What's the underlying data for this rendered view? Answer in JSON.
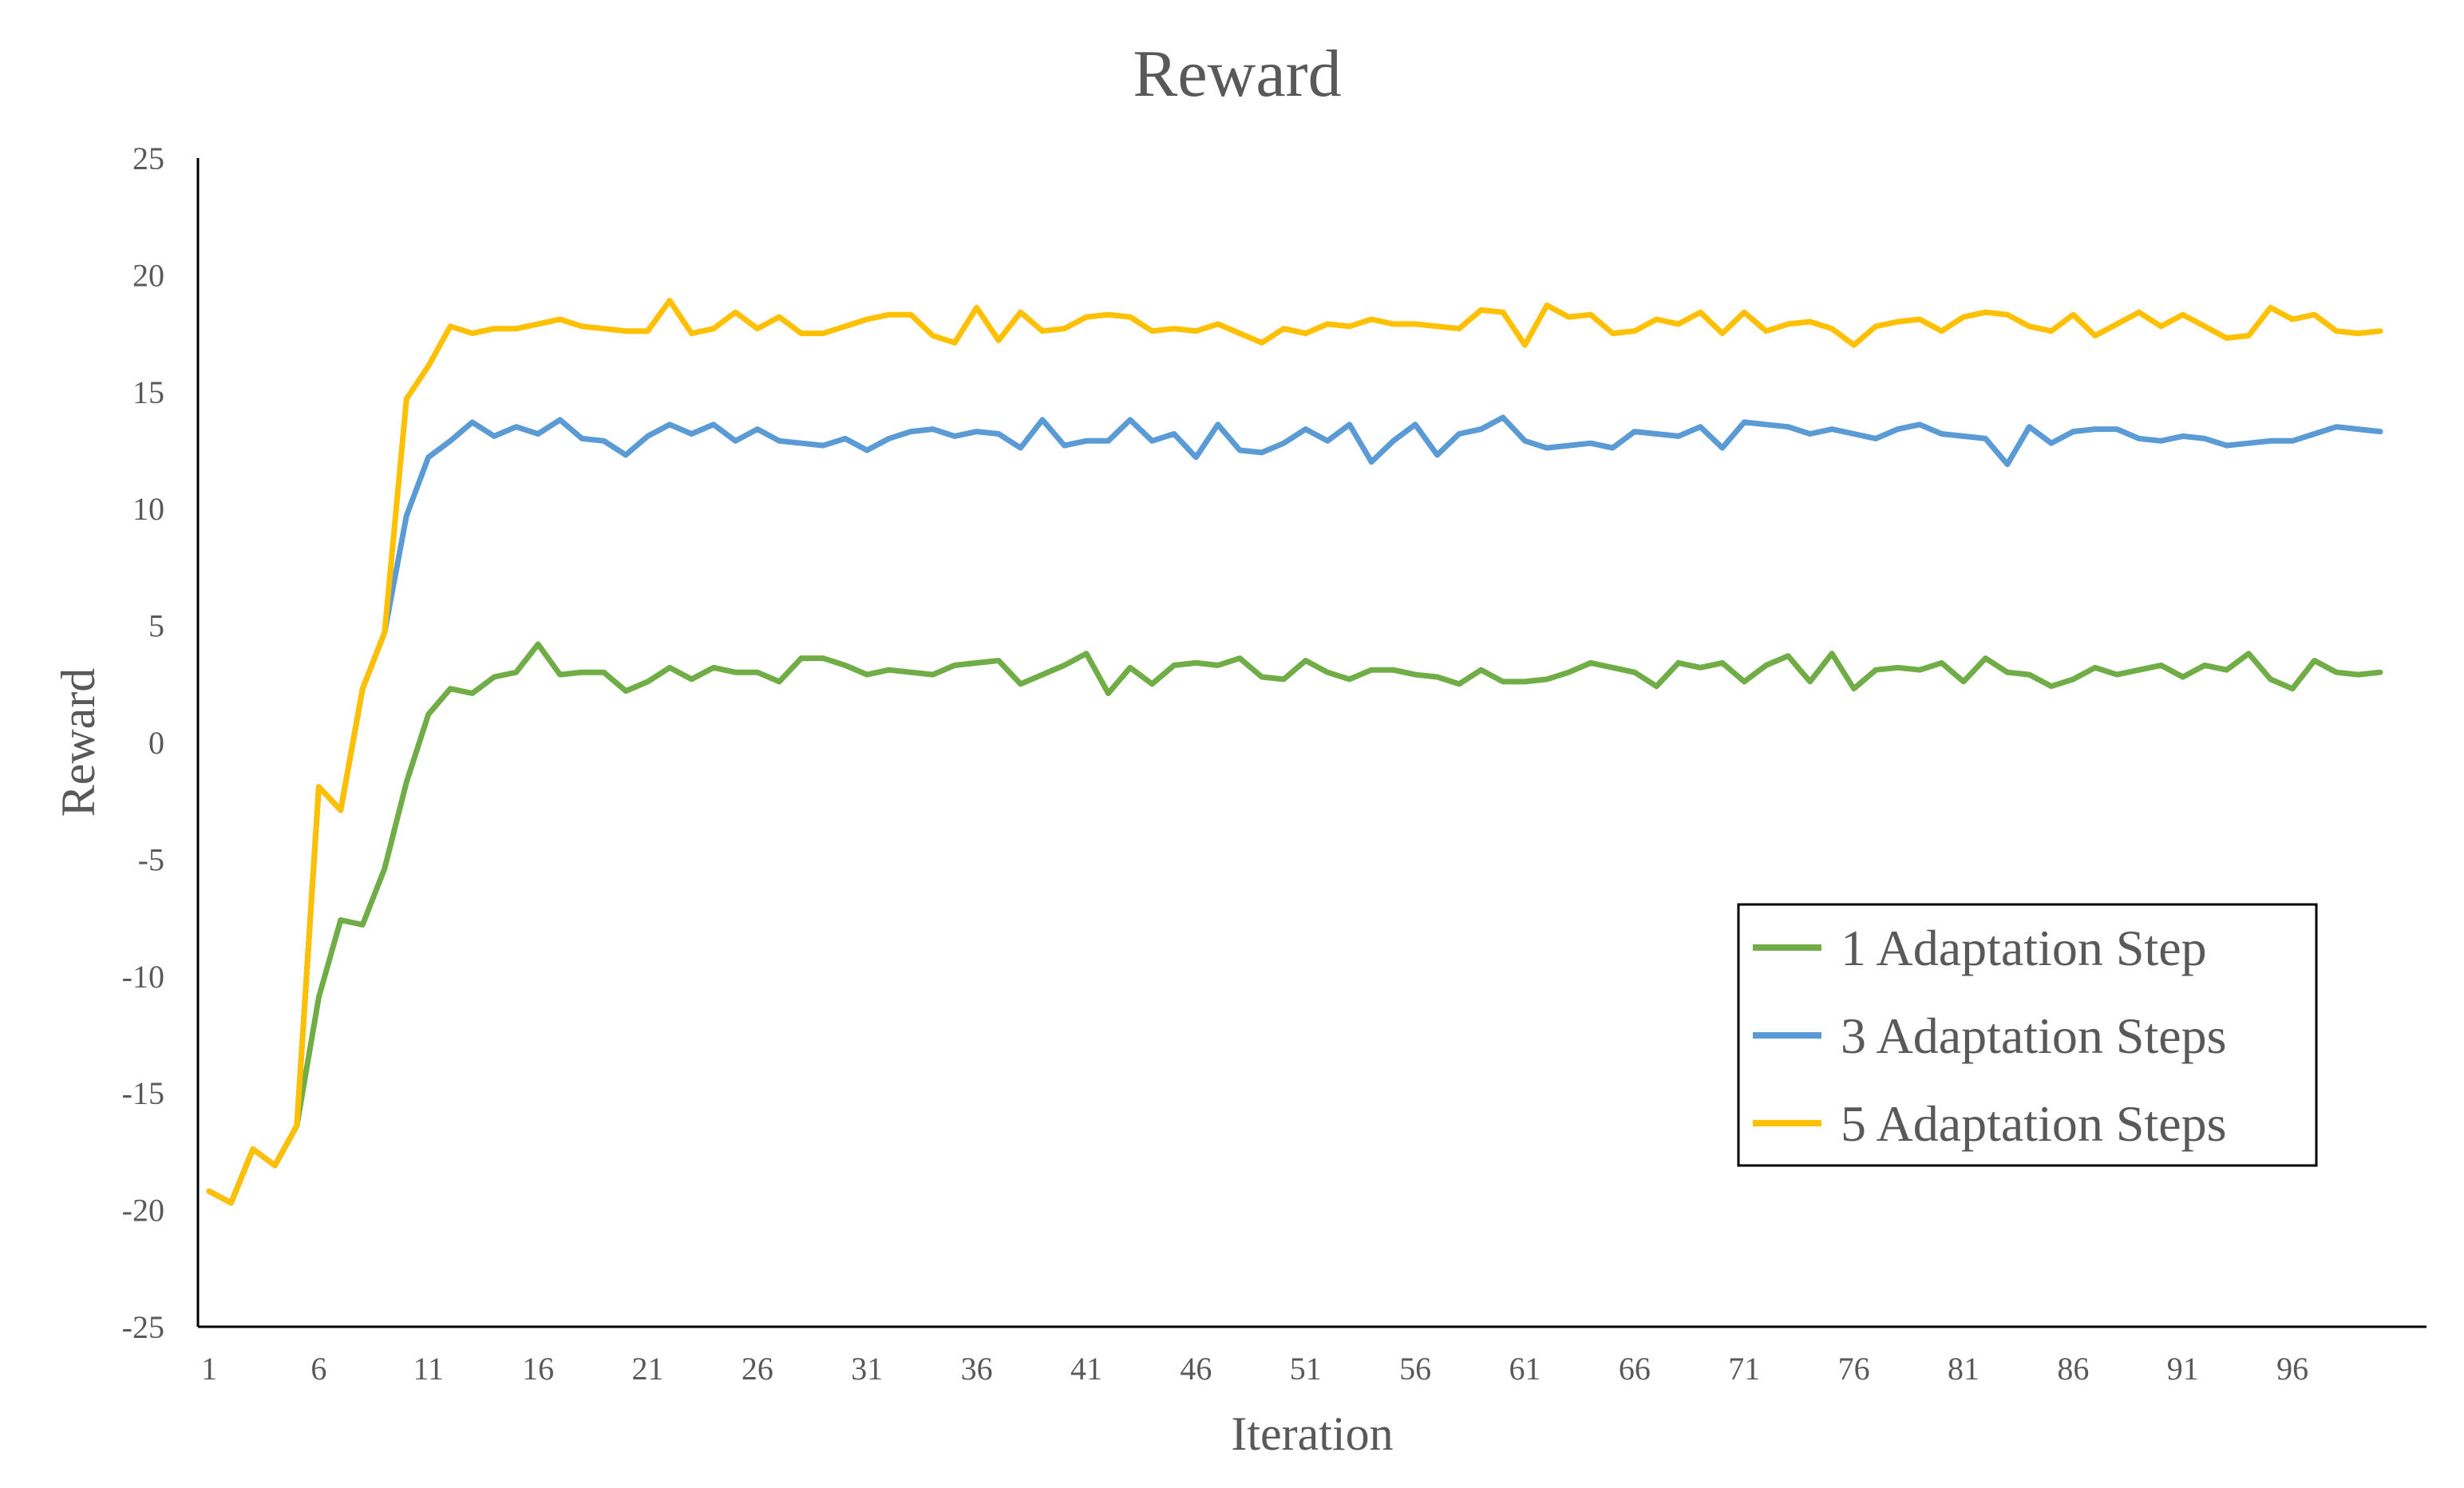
{
  "chart_data": {
    "type": "line",
    "title": "Reward",
    "xlabel": "Iteration",
    "ylabel": "Reward",
    "ylim": [
      -25,
      25
    ],
    "yticks": [
      -25,
      -20,
      -15,
      -10,
      -5,
      0,
      5,
      10,
      15,
      20,
      25
    ],
    "xlim": [
      1,
      100
    ],
    "xticks": [
      1,
      6,
      11,
      16,
      21,
      26,
      31,
      36,
      41,
      46,
      51,
      56,
      61,
      66,
      71,
      76,
      81,
      86,
      91,
      96
    ],
    "grid": false,
    "legend_position": "bottom-right",
    "series": [
      {
        "name": "1 Adaptation Step",
        "color": "#70AD47",
        "values": [
          -19.2,
          -19.7,
          -17.4,
          -18.1,
          -16.4,
          -10.9,
          -7.6,
          -7.8,
          -5.4,
          -1.7,
          1.2,
          2.3,
          2.1,
          2.8,
          3.0,
          4.2,
          2.9,
          3.0,
          3.0,
          2.2,
          2.6,
          3.2,
          2.7,
          3.2,
          3.0,
          3.0,
          2.6,
          3.6,
          3.6,
          3.3,
          2.9,
          3.1,
          3.0,
          2.9,
          3.3,
          3.4,
          3.5,
          2.5,
          2.9,
          3.3,
          3.8,
          2.1,
          3.2,
          2.5,
          3.3,
          3.4,
          3.3,
          3.6,
          2.8,
          2.7,
          3.5,
          3.0,
          2.7,
          3.1,
          3.1,
          2.9,
          2.8,
          2.5,
          3.1,
          2.6,
          2.6,
          2.7,
          3.0,
          3.4,
          3.2,
          3.0,
          2.4,
          3.4,
          3.2,
          3.4,
          2.6,
          3.3,
          3.7,
          2.6,
          3.8,
          2.3,
          3.1,
          3.2,
          3.1,
          3.4,
          2.6,
          3.6,
          3.0,
          2.9,
          2.4,
          2.7,
          3.2,
          2.9,
          3.1,
          3.3,
          2.8,
          3.3,
          3.1,
          3.8,
          2.7,
          2.3,
          3.5,
          3.0,
          2.9,
          3.0
        ]
      },
      {
        "name": "3 Adaptation Steps",
        "color": "#5B9BD5",
        "values": [
          -19.2,
          -19.7,
          -17.4,
          -18.1,
          -16.4,
          -1.9,
          -2.9,
          2.3,
          4.7,
          9.7,
          12.2,
          12.9,
          13.7,
          13.1,
          13.5,
          13.2,
          13.8,
          13.0,
          12.9,
          12.3,
          13.1,
          13.6,
          13.2,
          13.6,
          12.9,
          13.4,
          12.9,
          12.8,
          12.7,
          13.0,
          12.5,
          13.0,
          13.3,
          13.4,
          13.1,
          13.3,
          13.2,
          12.6,
          13.8,
          12.7,
          12.9,
          12.9,
          13.8,
          12.9,
          13.2,
          12.2,
          13.6,
          12.5,
          12.4,
          12.8,
          13.4,
          12.9,
          13.6,
          12.0,
          12.9,
          13.6,
          12.3,
          13.2,
          13.4,
          13.9,
          12.9,
          12.6,
          12.7,
          12.8,
          12.6,
          13.3,
          13.2,
          13.1,
          13.5,
          12.6,
          13.7,
          13.6,
          13.5,
          13.2,
          13.4,
          13.2,
          13.0,
          13.4,
          13.6,
          13.2,
          13.1,
          13.0,
          11.9,
          13.5,
          12.8,
          13.3,
          13.4,
          13.4,
          13.0,
          12.9,
          13.1,
          13.0,
          12.7,
          12.8,
          12.9,
          12.9,
          13.2,
          13.5,
          13.4,
          13.3
        ]
      },
      {
        "name": "5 Adaptation Steps",
        "color": "#FFC000",
        "values": [
          -19.2,
          -19.7,
          -17.4,
          -18.1,
          -16.4,
          -1.9,
          -2.9,
          2.3,
          4.7,
          14.7,
          16.1,
          17.8,
          17.5,
          17.7,
          17.7,
          17.9,
          18.1,
          17.8,
          17.7,
          17.6,
          17.6,
          18.9,
          17.5,
          17.7,
          18.4,
          17.7,
          18.2,
          17.5,
          17.5,
          17.8,
          18.1,
          18.3,
          18.3,
          17.4,
          17.1,
          18.6,
          17.2,
          18.4,
          17.6,
          17.7,
          18.2,
          18.3,
          18.2,
          17.6,
          17.7,
          17.6,
          17.9,
          17.5,
          17.1,
          17.7,
          17.5,
          17.9,
          17.8,
          18.1,
          17.9,
          17.9,
          17.8,
          17.7,
          18.5,
          18.4,
          17.0,
          18.7,
          18.2,
          18.3,
          17.5,
          17.6,
          18.1,
          17.9,
          18.4,
          17.5,
          18.4,
          17.6,
          17.9,
          18.0,
          17.7,
          17.0,
          17.8,
          18.0,
          18.1,
          17.6,
          18.2,
          18.4,
          18.3,
          17.8,
          17.6,
          18.3,
          17.4,
          17.9,
          18.4,
          17.8,
          18.3,
          17.8,
          17.3,
          17.4,
          18.6,
          18.1,
          18.3,
          17.6,
          17.5,
          17.6
        ]
      }
    ]
  }
}
